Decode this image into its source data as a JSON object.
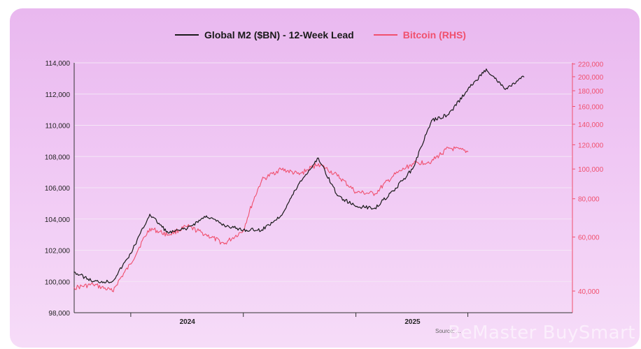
{
  "chart_data": {
    "type": "line",
    "title": "",
    "legend": {
      "placement": "top-center"
    },
    "x_ticks": [
      "2024",
      "2025"
    ],
    "left_axis": {
      "ylim": [
        98000,
        114000
      ],
      "ticks": [
        98000,
        100000,
        102000,
        104000,
        106000,
        108000,
        110000,
        112000,
        114000
      ],
      "tick_labels": [
        "98,000",
        "100,000",
        "102,000",
        "104,000",
        "106,000",
        "108,000",
        "110,000",
        "112,000",
        "114,000"
      ]
    },
    "right_axis": {
      "scale": "log",
      "ylim": [
        34000,
        222000
      ],
      "ticks": [
        40000,
        60000,
        80000,
        100000,
        120000,
        140000,
        160000,
        180000,
        200000,
        220000
      ],
      "tick_labels": [
        "40,000",
        "60,000",
        "80,000",
        "100,000",
        "120,000",
        "140,000",
        "160,000",
        "180,000",
        "200,000",
        "220,000"
      ]
    },
    "grid": true,
    "series": [
      {
        "name": "Global M2 ($BN) - 12-Week Lead",
        "axis": "left",
        "color": "#1a1a1a",
        "x": [
          "2023-07-01",
          "2023-08-01",
          "2023-09-01",
          "2023-10-01",
          "2023-11-01",
          "2023-12-01",
          "2024-01-01",
          "2024-02-01",
          "2024-03-01",
          "2024-04-01",
          "2024-05-01",
          "2024-06-01",
          "2024-07-01",
          "2024-08-01",
          "2024-09-01",
          "2024-10-01",
          "2024-11-01",
          "2024-12-01",
          "2025-01-01",
          "2025-02-01",
          "2025-03-01",
          "2025-04-01",
          "2025-05-01",
          "2025-06-01",
          "2025-07-01"
        ],
        "values": [
          100600,
          100000,
          100000,
          101800,
          104300,
          103100,
          103400,
          104200,
          103600,
          103300,
          103300,
          104200,
          106300,
          107900,
          105500,
          104800,
          104700,
          105800,
          107200,
          110300,
          110700,
          112300,
          113600,
          112300,
          113100
        ]
      },
      {
        "name": "Bitcoin (RHS)",
        "axis": "right",
        "color": "#f0506e",
        "x": [
          "2023-07-01",
          "2023-08-01",
          "2023-09-01",
          "2023-10-01",
          "2023-11-01",
          "2023-12-01",
          "2024-01-01",
          "2024-02-01",
          "2024-03-01",
          "2024-04-01",
          "2024-05-01",
          "2024-06-01",
          "2024-07-01",
          "2024-08-01",
          "2024-09-01",
          "2024-10-01",
          "2024-11-01",
          "2024-12-01",
          "2025-01-01",
          "2025-02-01",
          "2025-03-01",
          "2025-04-01"
        ],
        "values": [
          41000,
          42000,
          40000,
          49000,
          64000,
          61000,
          65000,
          61000,
          57000,
          63000,
          92000,
          100000,
          96000,
          104000,
          95000,
          84000,
          83000,
          95000,
          104000,
          106000,
          117000,
          114000
        ]
      }
    ]
  },
  "watermark": "BeMaster BuySmart",
  "source": "Source: ..."
}
